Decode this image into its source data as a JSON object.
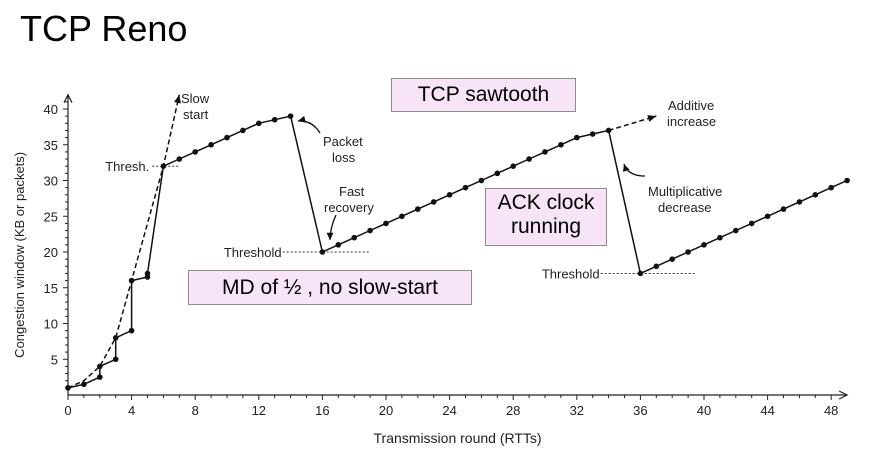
{
  "slide": {
    "title": "TCP Reno"
  },
  "callouts": {
    "sawtooth": "TCP sawtooth",
    "ack_line1": "ACK clock",
    "ack_line2": "running",
    "md": "MD of ½ , no slow-start"
  },
  "chart_data": {
    "type": "line",
    "xlabel": "Transmission round (RTTs)",
    "ylabel": "Congestion window  (KB or packets)",
    "xlim": [
      0,
      49
    ],
    "ylim": [
      0,
      42
    ],
    "xticks": [
      0,
      4,
      8,
      12,
      16,
      20,
      24,
      28,
      32,
      36,
      40,
      44,
      48
    ],
    "yticks": [
      5,
      10,
      15,
      20,
      25,
      30,
      35,
      40
    ],
    "series": [
      {
        "style": "solid",
        "x": [
          0,
          1,
          2,
          2,
          3,
          3,
          4,
          4,
          5,
          5,
          6,
          7,
          8,
          9,
          10,
          11,
          12,
          13,
          14,
          16,
          17,
          18,
          19,
          20,
          21,
          22,
          23,
          24,
          25,
          26,
          27,
          28,
          29,
          30,
          31,
          32,
          33,
          34,
          36,
          37,
          38,
          39,
          40,
          41,
          42,
          43,
          44,
          45,
          46,
          47,
          48,
          49
        ],
        "y": [
          1,
          1.5,
          2.5,
          4,
          5,
          8,
          9,
          16,
          16.5,
          17,
          32,
          33,
          34,
          35,
          36,
          37,
          38,
          38.5,
          39,
          20,
          21,
          22,
          23,
          24,
          25,
          26,
          27,
          28,
          29,
          30,
          31,
          32,
          33,
          34,
          35,
          36,
          36.5,
          37,
          17,
          18,
          19,
          20,
          21,
          22,
          23,
          24,
          25,
          26,
          27,
          28,
          29,
          30
        ]
      },
      {
        "style": "dashed",
        "x": [
          0,
          1,
          2,
          3,
          4,
          5,
          6,
          7
        ],
        "y": [
          1,
          2,
          4,
          8,
          16,
          24,
          32,
          42
        ]
      },
      {
        "style": "dashed",
        "x": [
          34,
          37
        ],
        "y": [
          37,
          39
        ]
      }
    ],
    "threshold_lines": [
      {
        "label": "Thresh.",
        "y": 32,
        "x_from": 5.3,
        "x_to": 7
      },
      {
        "label": "Threshold",
        "y": 20,
        "x_from": 13.5,
        "x_to": 19
      },
      {
        "label": "Threshold",
        "y": 17,
        "x_from": 33.5,
        "x_to": 39.5
      }
    ],
    "annotations": [
      {
        "text": "Slow start",
        "lines": [
          "Slow",
          "start"
        ]
      },
      {
        "text": "Packet loss",
        "lines": [
          "Packet",
          "loss"
        ]
      },
      {
        "text": "Fast recovery",
        "lines": [
          "Fast",
          "recovery"
        ]
      },
      {
        "text": "Additive increase",
        "lines": [
          "Additive",
          "increase"
        ]
      },
      {
        "text": "Multiplicative decrease",
        "lines": [
          "Multiplicative",
          "decrease"
        ]
      }
    ]
  }
}
